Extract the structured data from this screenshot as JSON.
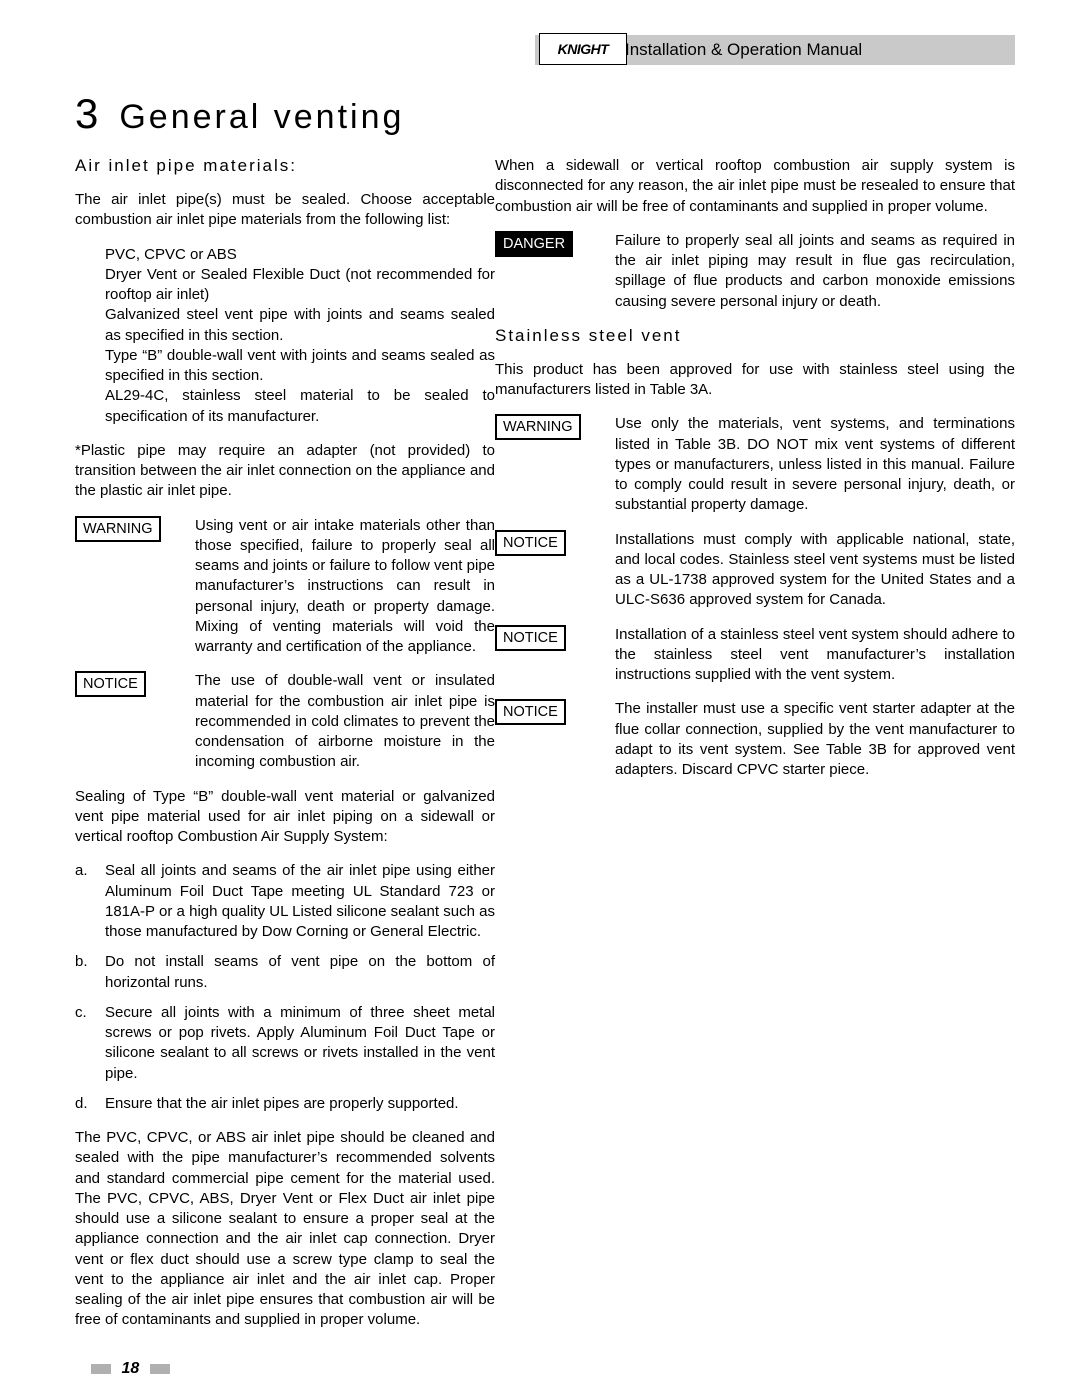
{
  "header": {
    "logo_text": "KNIGHT",
    "manual_title": "Installation & Operation Manual"
  },
  "section": {
    "number": "3",
    "title": "General venting"
  },
  "left": {
    "subhead": "Air inlet pipe materials:",
    "p1": "The air inlet pipe(s) must be sealed.  Choose acceptable combustion air inlet pipe materials from the following list:",
    "materials": [
      "PVC, CPVC or ABS",
      "Dryer Vent or Sealed Flexible Duct (not recommended for rooftop air inlet)",
      "Galvanized steel vent pipe with joints and seams sealed as specified in this section.",
      "Type “B” double-wall vent with joints and seams sealed as specified in this section.",
      "AL29-4C, stainless steel material to be sealed to specification of its manufacturer."
    ],
    "p2": "*Plastic pipe may require an adapter (not provided) to transition between the air inlet connection on the appliance and the plastic air inlet pipe.",
    "warning1_label": "WARNING",
    "warning1_text": "Using vent or air intake materials other than those specified, failure to properly seal all seams and joints or failure to follow vent pipe manufacturer’s instructions can result in personal injury, death or property damage.  Mixing of venting materials will void the warranty and certification of the appliance.",
    "notice1_label": "NOTICE",
    "notice1_text": "The use of double-wall vent or insulated material for the combustion air inlet pipe is recommended in cold climates to prevent the condensation of airborne moisture in the incoming combustion air.",
    "p3": "Sealing of Type “B” double-wall vent material or galvanized vent pipe material used for air inlet piping on a sidewall or vertical rooftop Combustion Air Supply System:",
    "list": [
      {
        "m": "a.",
        "t": "Seal all joints and seams of the air inlet pipe using either Aluminum Foil Duct Tape meeting UL Standard 723 or 181A-P or a high quality UL Listed silicone sealant such as those manufactured by Dow Corning or General Electric."
      },
      {
        "m": "b.",
        "t": "Do not install seams of vent pipe on the bottom of horizontal runs."
      },
      {
        "m": "c.",
        "t": "Secure all joints with a minimum of three sheet metal screws or pop rivets.  Apply Aluminum Foil Duct Tape or silicone sealant to all screws or rivets installed in the vent pipe."
      },
      {
        "m": "d.",
        "t": "Ensure that the air inlet pipes are properly supported."
      }
    ],
    "p4": "The PVC, CPVC, or ABS air inlet pipe should be cleaned and sealed with the pipe manufacturer’s recommended solvents and standard commercial pipe cement for the material used.  The PVC, CPVC, ABS, Dryer Vent or Flex Duct air inlet pipe should use a silicone sealant to ensure a proper seal at the appliance connection and the air inlet cap connection.  Dryer vent or flex duct should use a screw type clamp to seal the vent to the appliance air inlet and the air inlet cap.  Proper sealing of the air inlet pipe ensures that combustion air will be free of contaminants and supplied in proper volume."
  },
  "right": {
    "p1": "When a sidewall or vertical rooftop combustion air supply system is disconnected for any reason, the air inlet pipe must be resealed to ensure that combustion air will be free of contaminants and supplied in proper volume.",
    "danger_label": "DANGER",
    "danger_text": "Failure to properly seal all joints and seams as required in the air inlet piping may result in flue gas recirculation, spillage of flue products and carbon monoxide emissions causing severe personal injury or death.",
    "subhead2": "Stainless steel vent",
    "p2": "This product has been approved for use with stainless steel using the manufacturers listed in Table 3A.",
    "warning2_label": "WARNING",
    "warning2_text": "Use only the materials, vent systems, and terminations listed in Table 3B.  DO NOT mix vent systems of different types or manufacturers, unless listed in this manual.  Failure to comply could result in severe personal injury, death, or substantial property damage.",
    "notice2_label": "NOTICE",
    "notice2_text": "Installations must comply with applicable national, state, and local codes.  Stainless steel vent systems must be listed as a UL-1738 approved system for the United States and a ULC-S636 approved system for Canada.",
    "notice3_label": "NOTICE",
    "notice3_text": "Installation of a stainless steel vent system should adhere to the stainless steel vent manufacturer’s installation instructions supplied with the vent system.",
    "notice4_label": "NOTICE",
    "notice4_text": "The installer must use a specific vent starter adapter at the flue collar connection, supplied by the vent manufacturer to adapt to its vent system.  See Table 3B for approved vent adapters.  Discard CPVC starter piece."
  },
  "page_number": "18"
}
